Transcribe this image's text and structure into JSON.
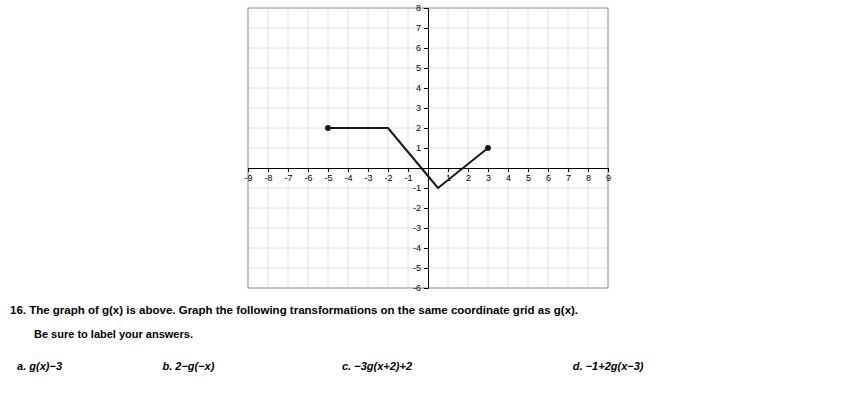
{
  "chart_data": {
    "type": "line",
    "title": "16. The graph of g(x) is above. Graph the following transformations on the same coordinate grid as g(x).",
    "subtitle": "Be sure to label your answers.",
    "annotations": [
      "a. g(x)−3",
      "b. 2−g(−x)",
      "c. −3g(x+2)+2",
      "d. −1+2g(x−3)"
    ],
    "x": [
      -5,
      -2,
      0.5,
      3
    ],
    "values": [
      2,
      2,
      -1,
      1
    ],
    "color": "#1a1a1a",
    "xlim": [
      -9,
      9
    ],
    "ylim": [
      -6,
      8
    ],
    "xticks": [
      -9,
      -8,
      -7,
      -6,
      -5,
      -4,
      -3,
      -2,
      -1,
      1,
      2,
      3,
      4,
      5,
      6,
      7,
      8,
      9
    ],
    "yticks": [
      -6,
      -5,
      -4,
      -3,
      -2,
      -1,
      1,
      2,
      3,
      4,
      5,
      6,
      7,
      8
    ],
    "grid": true
  }
}
